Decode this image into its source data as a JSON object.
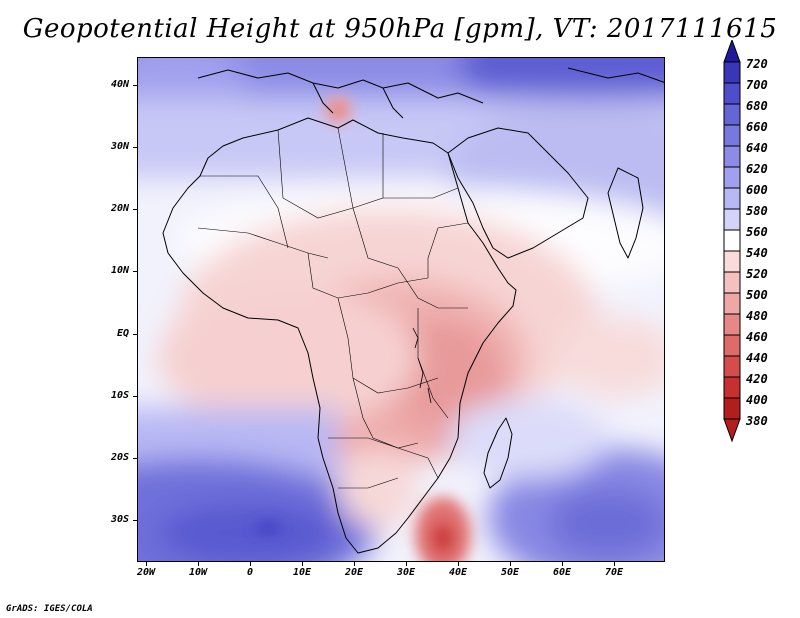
{
  "title": "Geopotential Height at 950hPa [gpm], VT: 2017111615",
  "credit": "GrADS: IGES/COLA",
  "map": {
    "variable": "Geopotential Height",
    "level": "950hPa",
    "units": "gpm",
    "valid_time": "2017111615",
    "lat_labels": [
      "40N",
      "30N",
      "20N",
      "10N",
      "EQ",
      "10S",
      "20S",
      "30S"
    ],
    "lon_labels": [
      "20W",
      "10W",
      "0",
      "10E",
      "20E",
      "30E",
      "40E",
      "50E",
      "60E",
      "70E"
    ]
  },
  "colorbar": {
    "levels": [
      "720",
      "700",
      "680",
      "660",
      "640",
      "620",
      "600",
      "580",
      "560",
      "540",
      "520",
      "500",
      "480",
      "460",
      "440",
      "420",
      "400",
      "380"
    ],
    "colors": [
      "#201a9a",
      "#3a36b8",
      "#4f4dcc",
      "#6565d6",
      "#7878de",
      "#8c8ce6",
      "#a0a0ee",
      "#b8b8f4",
      "#d4d4fa",
      "#ffffff",
      "#fadada",
      "#f4c0c0",
      "#eea6a6",
      "#e68888",
      "#de6a6a",
      "#d44c4c",
      "#c63030",
      "#b21e1e"
    ]
  },
  "colors": {
    "background": "#ffffff",
    "land_outline": "#000000"
  }
}
